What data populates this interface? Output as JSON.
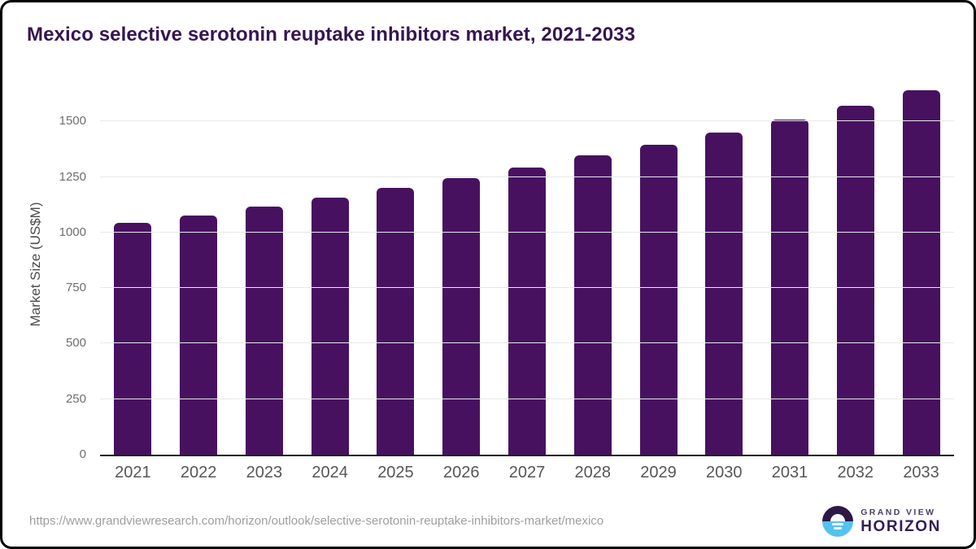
{
  "chart_data": {
    "type": "bar",
    "title": "Mexico selective serotonin reuptake inhibitors market, 2021-2033",
    "categories": [
      "2021",
      "2022",
      "2023",
      "2024",
      "2025",
      "2026",
      "2027",
      "2028",
      "2029",
      "2030",
      "2031",
      "2032",
      "2033"
    ],
    "values": [
      1042,
      1078,
      1117,
      1157,
      1200,
      1246,
      1294,
      1346,
      1396,
      1450,
      1509,
      1571,
      1640
    ],
    "xlabel": "",
    "ylabel": "Market Size (US$M)",
    "ylim": [
      0,
      1655
    ],
    "yticks": [
      0,
      250,
      500,
      750,
      1000,
      1250,
      1500
    ],
    "bar_color": "#471160",
    "grid": "horizontal",
    "legend": "none"
  },
  "footer": {
    "source_url": "https://www.grandviewresearch.com/horizon/outlook/selective-serotonin-reuptake-inhibitors-market/mexico",
    "logo": {
      "line1": "GRAND VIEW",
      "line2": "HORIZON",
      "icon": "horizon-sun-circle",
      "colors": {
        "dark_purple": "#2d1846",
        "light_blue": "#55c1ef"
      }
    }
  }
}
